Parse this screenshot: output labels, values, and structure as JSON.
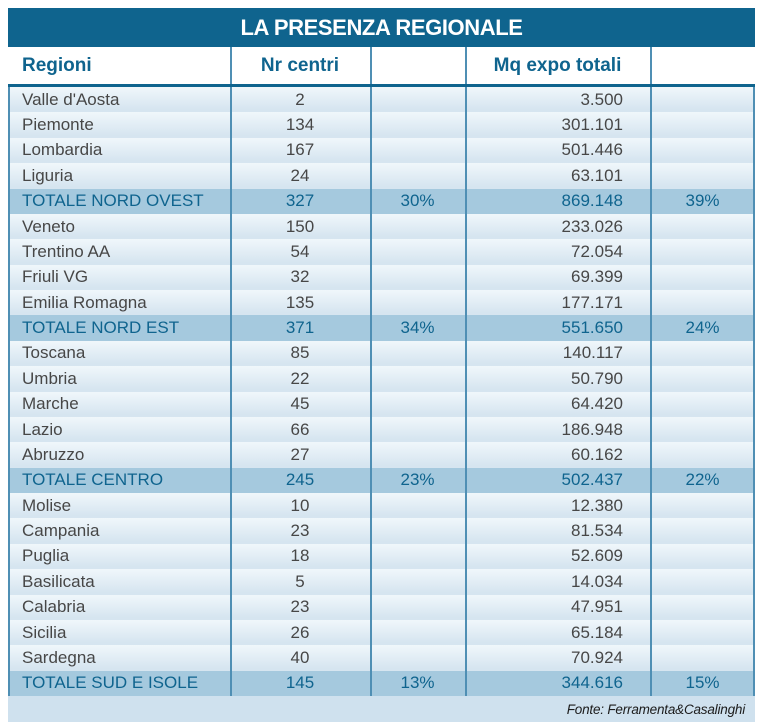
{
  "colors": {
    "accent_teal": "#0f648e",
    "total_row_bg": "#a5c9de",
    "row_bg_top": "#f0f7fb",
    "row_bg_bottom": "#d6e5f0",
    "separator": "#4f8fb4",
    "footer_bg": "#cfe1ee"
  },
  "chart_data": {
    "type": "table",
    "title": "LA PRESENZA REGIONALE",
    "columns": [
      "Regioni",
      "Nr centri",
      "",
      "Mq expo totali",
      ""
    ],
    "source": "Fonte: Ferramenta&Casalinghi",
    "sections": [
      {
        "rows": [
          [
            "Valle d'Aosta",
            "2",
            "",
            "3.500",
            ""
          ],
          [
            "Piemonte",
            "134",
            "",
            "301.101",
            ""
          ],
          [
            "Lombardia",
            "167",
            "",
            "501.446",
            ""
          ],
          [
            "Liguria",
            "24",
            "",
            "63.101",
            ""
          ]
        ],
        "total": [
          "TOTALE NORD OVEST",
          "327",
          "30%",
          "869.148",
          "39%"
        ]
      },
      {
        "rows": [
          [
            "Veneto",
            "150",
            "",
            "233.026",
            ""
          ],
          [
            "Trentino AA",
            "54",
            "",
            "72.054",
            ""
          ],
          [
            "Friuli VG",
            "32",
            "",
            "69.399",
            ""
          ],
          [
            "Emilia Romagna",
            "135",
            "",
            "177.171",
            ""
          ]
        ],
        "total": [
          "TOTALE NORD EST",
          "371",
          "34%",
          "551.650",
          "24%"
        ]
      },
      {
        "rows": [
          [
            "Toscana",
            "85",
            "",
            "140.117",
            ""
          ],
          [
            "Umbria",
            "22",
            "",
            "50.790",
            ""
          ],
          [
            "Marche",
            "45",
            "",
            "64.420",
            ""
          ],
          [
            "Lazio",
            "66",
            "",
            "186.948",
            ""
          ],
          [
            "Abruzzo",
            "27",
            "",
            "60.162",
            ""
          ]
        ],
        "total": [
          "TOTALE CENTRO",
          "245",
          "23%",
          "502.437",
          "22%"
        ]
      },
      {
        "rows": [
          [
            "Molise",
            "10",
            "",
            "12.380",
            ""
          ],
          [
            "Campania",
            "23",
            "",
            "81.534",
            ""
          ],
          [
            "Puglia",
            "18",
            "",
            "52.609",
            ""
          ],
          [
            "Basilicata",
            "5",
            "",
            "14.034",
            ""
          ],
          [
            "Calabria",
            "23",
            "",
            "47.951",
            ""
          ],
          [
            "Sicilia",
            "26",
            "",
            "65.184",
            ""
          ],
          [
            "Sardegna",
            "40",
            "",
            "70.924",
            ""
          ]
        ],
        "total": [
          "TOTALE SUD E ISOLE",
          "145",
          "13%",
          "344.616",
          "15%"
        ]
      }
    ]
  }
}
